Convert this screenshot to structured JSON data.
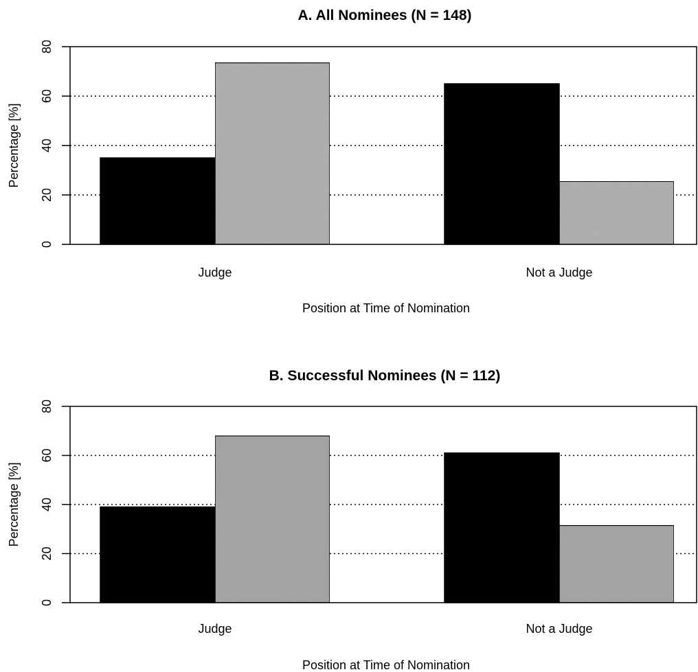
{
  "chart_data": [
    {
      "type": "bar",
      "title": "A. All Nominees (N = 148)",
      "xlabel": "Position at Time of Nomination",
      "ylabel": "Percentage [%]",
      "ylim": [
        0,
        80
      ],
      "yticks": [
        "0",
        "20",
        "40",
        "60",
        "80"
      ],
      "categories": [
        "Judge",
        "Not a Judge"
      ],
      "series": [
        {
          "values": [
            35,
            65
          ],
          "color": "#000000"
        },
        {
          "values": [
            73.5,
            25.5
          ],
          "color": "#b5b5b5"
        }
      ],
      "grid": "dotted horizontal at 20, 40, 60"
    },
    {
      "type": "bar",
      "title": "B. Successful Nominees (N = 112)",
      "xlabel": "Position at Time of Nomination",
      "ylabel": "Percentage [%]",
      "ylim": [
        0,
        80
      ],
      "yticks": [
        "0",
        "20",
        "40",
        "60",
        "80"
      ],
      "categories": [
        "Judge",
        "Not a Judge"
      ],
      "series": [
        {
          "values": [
            39,
            61
          ],
          "color": "#000000"
        },
        {
          "values": [
            68,
            31.5
          ],
          "color": "#aaaaaa"
        }
      ],
      "grid": "dotted horizontal at 20, 40, 60"
    }
  ]
}
